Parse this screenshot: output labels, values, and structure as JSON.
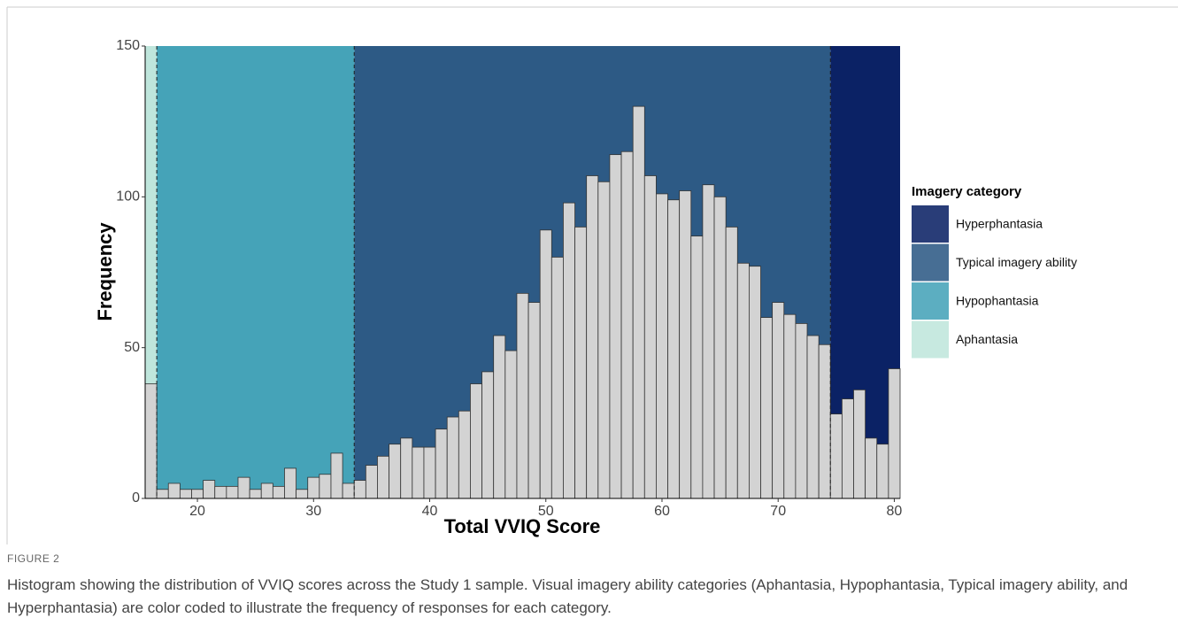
{
  "chart_data": {
    "type": "histogram",
    "xlabel": "Total VVIQ Score",
    "ylabel": "Frequency",
    "bins": [
      15.5,
      16.5,
      17.5,
      18.5,
      19.5,
      20.5,
      21.5,
      22.5,
      23.5,
      24.5,
      25.5,
      26.5,
      27.5,
      28.5,
      29.5,
      30.5,
      31.5,
      32.5,
      33.5,
      34.5,
      35.5,
      36.5,
      37.5,
      38.5,
      39.5,
      40.5,
      41.5,
      42.5,
      43.5,
      44.5,
      45.5,
      46.5,
      47.5,
      48.5,
      49.5,
      50.5,
      51.5,
      52.5,
      53.5,
      54.5,
      55.5,
      56.5,
      57.5,
      58.5,
      59.5,
      60.5,
      61.5,
      62.5,
      63.5,
      64.5,
      65.5,
      66.5,
      67.5,
      68.5,
      69.5,
      70.5,
      71.5,
      72.5,
      73.5,
      74.5,
      75.5,
      76.5,
      77.5,
      78.5,
      79.5,
      80.5
    ],
    "counts": [
      38,
      3,
      5,
      3,
      3,
      6,
      4,
      4,
      7,
      3,
      5,
      4,
      10,
      3,
      7,
      8,
      15,
      5,
      6,
      11,
      14,
      18,
      20,
      17,
      17,
      23,
      27,
      29,
      38,
      42,
      54,
      49,
      68,
      65,
      89,
      80,
      98,
      90,
      107,
      105,
      114,
      115,
      130,
      107,
      101,
      99,
      102,
      87,
      104,
      100,
      90,
      78,
      77,
      60,
      65,
      61,
      58,
      54,
      51,
      28,
      33,
      36,
      20,
      18,
      43
    ],
    "color": "#d3d3d3",
    "xlim": [
      15.5,
      80.5
    ],
    "xticks": [
      20,
      30,
      40,
      50,
      60,
      70,
      80
    ],
    "ylim": [
      0,
      150
    ],
    "yticks": [
      0,
      50,
      100,
      150
    ],
    "legend_title": "Imagery category",
    "regions": [
      {
        "name": "Hyperphantasia",
        "color": "#0b2265",
        "start": 74.5,
        "end": 80.5
      },
      {
        "name": "Typical imagery ability",
        "color": "#2d5a85",
        "start": 33.5,
        "end": 74.5
      },
      {
        "name": "Hypophantasia",
        "color": "#45a3b8",
        "start": 16.5,
        "end": 33.5
      },
      {
        "name": "Aphantasia",
        "color": "#bfe6dc",
        "start": 15.5,
        "end": 16.5
      }
    ]
  },
  "caption": {
    "label": "FIGURE 2",
    "text": "Histogram showing the distribution of VVIQ scores across the Study 1 sample. Visual imagery ability categories (Aphantasia, Hypophantasia, Typical imagery ability, and Hyperphantasia) are color coded to illustrate the frequency of responses for each category."
  }
}
